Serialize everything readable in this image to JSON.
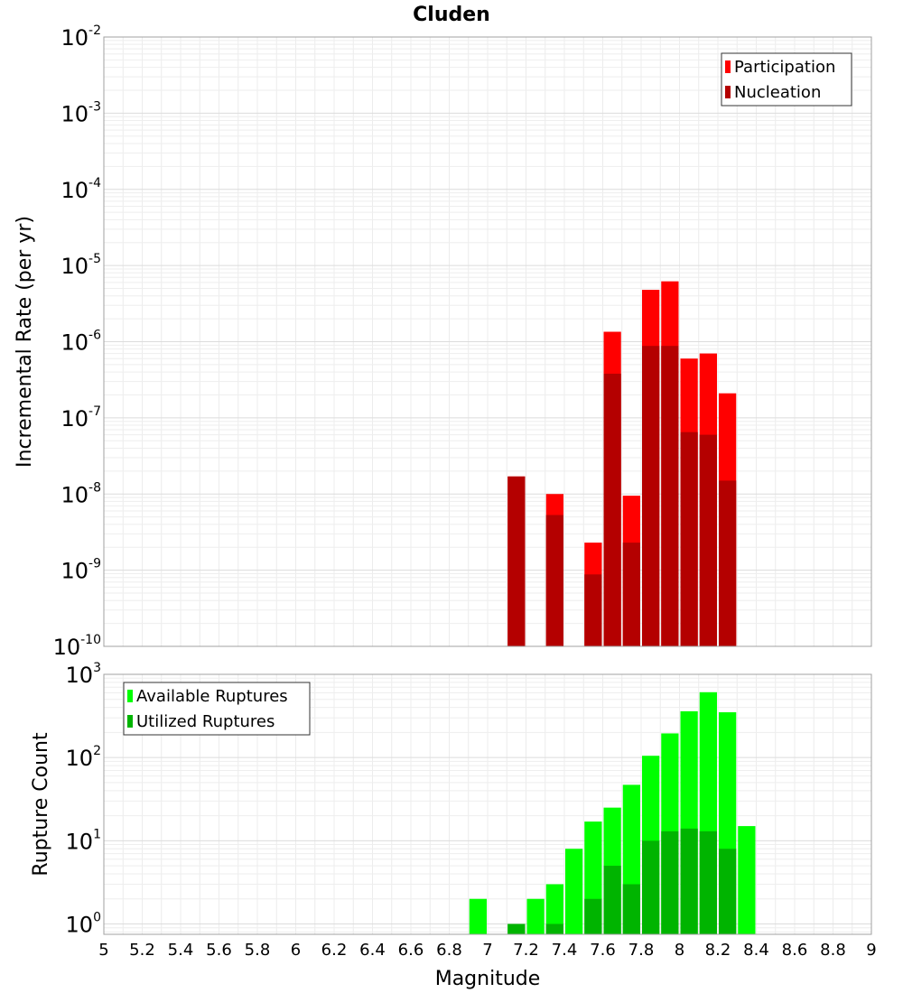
{
  "chart_data": {
    "type": "bar",
    "title": "Cluden",
    "xlabel": "Magnitude",
    "xlim": [
      5,
      9
    ],
    "xticks": [
      "5",
      "5.2",
      "5.4",
      "5.6",
      "5.8",
      "6",
      "6.2",
      "6.4",
      "6.6",
      "6.8",
      "7",
      "7.2",
      "7.4",
      "7.6",
      "7.8",
      "8",
      "8.2",
      "8.4",
      "8.6",
      "8.8",
      "9"
    ],
    "bin_width": 0.1,
    "panels": [
      {
        "ylabel": "Incremental Rate (per yr)",
        "yscale": "log",
        "ylim": [
          1e-10,
          0.01
        ],
        "yticks": [
          {
            "base": "10",
            "exp": "-2"
          },
          {
            "base": "10",
            "exp": "-3"
          },
          {
            "base": "10",
            "exp": "-4"
          },
          {
            "base": "10",
            "exp": "-5"
          },
          {
            "base": "10",
            "exp": "-6"
          },
          {
            "base": "10",
            "exp": "-7"
          },
          {
            "base": "10",
            "exp": "-8"
          },
          {
            "base": "10",
            "exp": "-9"
          },
          {
            "base": "10",
            "exp": "-10"
          }
        ],
        "grid": true,
        "legend_position": "top-right",
        "series": [
          {
            "name": "Participation",
            "color": "#ff0000",
            "x": [
              7.15,
              7.35,
              7.55,
              7.65,
              7.75,
              7.85,
              7.95,
              8.05,
              8.15,
              8.25
            ],
            "values": [
              1.7e-08,
              1e-08,
              2.3e-09,
              1.35e-06,
              9.5e-09,
              4.8e-06,
              6.2e-06,
              6e-07,
              7e-07,
              2.1e-07
            ]
          },
          {
            "name": "Nucleation",
            "color": "#b40000",
            "x": [
              7.15,
              7.35,
              7.55,
              7.65,
              7.75,
              7.85,
              7.95,
              8.05,
              8.15,
              8.25
            ],
            "values": [
              1.7e-08,
              5.3e-09,
              8.8e-10,
              3.8e-07,
              2.3e-09,
              8.8e-07,
              8.8e-07,
              6.5e-08,
              6e-08,
              1.5e-08
            ]
          }
        ]
      },
      {
        "ylabel": "Rupture Count",
        "yscale": "log",
        "ylim": [
          0.75,
          1000
        ],
        "yticks": [
          {
            "base": "10",
            "exp": "3"
          },
          {
            "base": "10",
            "exp": "2"
          },
          {
            "base": "10",
            "exp": "1"
          },
          {
            "base": "10",
            "exp": "0"
          }
        ],
        "grid": true,
        "legend_position": "top-left",
        "series": [
          {
            "name": "Available Ruptures",
            "color": "#00ff00",
            "x": [
              6.95,
              7.15,
              7.25,
              7.35,
              7.45,
              7.55,
              7.65,
              7.75,
              7.85,
              7.95,
              8.05,
              8.15,
              8.25,
              8.35
            ],
            "values": [
              2,
              1,
              2,
              3,
              8,
              17,
              25,
              47,
              105,
              195,
              360,
              610,
              350,
              15
            ]
          },
          {
            "name": "Utilized Ruptures",
            "color": "#00b400",
            "x": [
              7.15,
              7.35,
              7.55,
              7.65,
              7.75,
              7.85,
              7.95,
              8.05,
              8.15,
              8.25
            ],
            "values": [
              1,
              1,
              2,
              5,
              3,
              10,
              13,
              14,
              13,
              8
            ]
          }
        ]
      }
    ]
  }
}
